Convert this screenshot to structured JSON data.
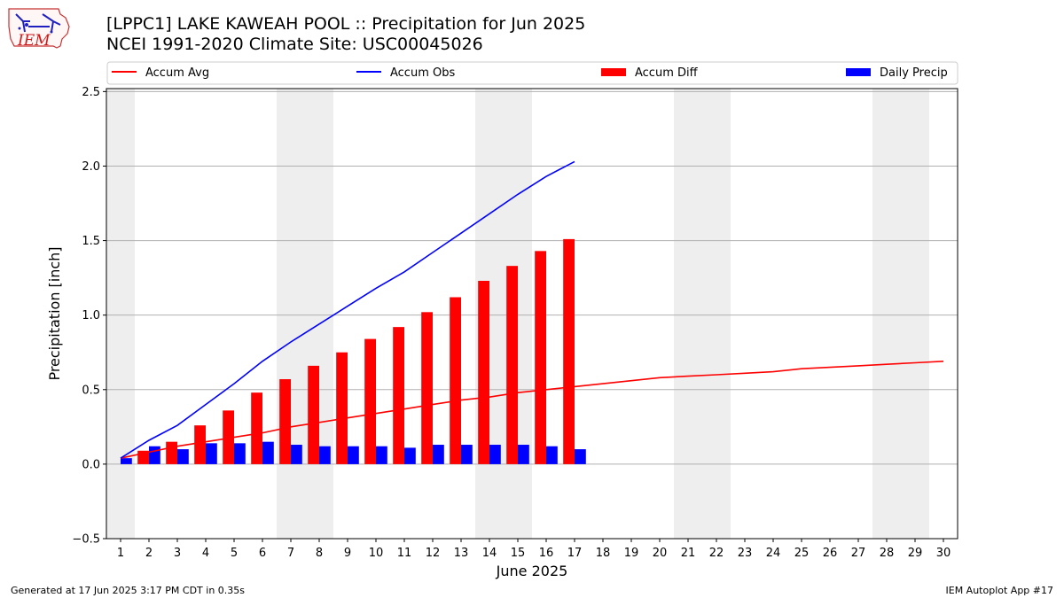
{
  "header": {
    "title_line1": "[LPPC1] LAKE KAWEAH POOL :: Precipitation for Jun 2025",
    "title_line2": "NCEI 1991-2020 Climate Site: USC00045026",
    "logo_text": "IEM"
  },
  "footer": {
    "generated": "Generated at 17 Jun 2025 3:17 PM CDT in 0.35s",
    "app": "IEM Autoplot App #17"
  },
  "colors": {
    "avg": "#ff0000",
    "obs": "#0000ff",
    "diff": "#ff0000",
    "daily": "#0000ff",
    "weekend_shade": "#eeeeee",
    "grid": "#b0b0b0"
  },
  "chart_data": {
    "type": "bar",
    "xlabel": "June 2025",
    "ylabel": "Precipitation [inch]",
    "xlim": [
      0.5,
      30.5
    ],
    "ylim": [
      -0.5,
      2.52
    ],
    "x_ticks": [
      1,
      2,
      3,
      4,
      5,
      6,
      7,
      8,
      9,
      10,
      11,
      12,
      13,
      14,
      15,
      16,
      17,
      18,
      19,
      20,
      21,
      22,
      23,
      24,
      25,
      26,
      27,
      28,
      29,
      30
    ],
    "y_ticks": [
      -0.5,
      0.0,
      0.5,
      1.0,
      1.5,
      2.0,
      2.5
    ],
    "y_tick_labels": [
      "−0.5",
      "0.0",
      "0.5",
      "1.0",
      "1.5",
      "2.0",
      "2.5"
    ],
    "grid": "horizontal",
    "legend_placement": "top",
    "weekend_shaded_days": [
      [
        1,
        1
      ],
      [
        7,
        8
      ],
      [
        14,
        15
      ],
      [
        21,
        22
      ],
      [
        28,
        29
      ]
    ],
    "series": [
      {
        "name": "Accum Avg",
        "kind": "line",
        "x": [
          1,
          2,
          3,
          4,
          5,
          6,
          7,
          8,
          9,
          10,
          11,
          12,
          13,
          14,
          15,
          16,
          17,
          18,
          19,
          20,
          21,
          22,
          23,
          24,
          25,
          26,
          27,
          28,
          29,
          30
        ],
        "values": [
          0.04,
          0.08,
          0.12,
          0.15,
          0.18,
          0.21,
          0.25,
          0.28,
          0.31,
          0.34,
          0.37,
          0.4,
          0.43,
          0.45,
          0.48,
          0.5,
          0.52,
          0.54,
          0.56,
          0.58,
          0.59,
          0.6,
          0.61,
          0.62,
          0.64,
          0.65,
          0.66,
          0.67,
          0.68,
          0.69
        ]
      },
      {
        "name": "Accum Obs",
        "kind": "line",
        "x": [
          1,
          2,
          3,
          4,
          5,
          6,
          7,
          8,
          9,
          10,
          11,
          12,
          13,
          14,
          15,
          16,
          17
        ],
        "values": [
          0.04,
          0.16,
          0.26,
          0.4,
          0.54,
          0.69,
          0.82,
          0.94,
          1.06,
          1.18,
          1.29,
          1.42,
          1.55,
          1.68,
          1.81,
          1.93,
          2.03
        ]
      },
      {
        "name": "Accum Diff",
        "kind": "bar",
        "x": [
          1,
          2,
          3,
          4,
          5,
          6,
          7,
          8,
          9,
          10,
          11,
          12,
          13,
          14,
          15,
          16,
          17
        ],
        "values": [
          0.0,
          0.09,
          0.15,
          0.26,
          0.36,
          0.48,
          0.57,
          0.66,
          0.75,
          0.84,
          0.92,
          1.02,
          1.12,
          1.23,
          1.33,
          1.43,
          1.51
        ]
      },
      {
        "name": "Daily Precip",
        "kind": "bar",
        "x": [
          1,
          2,
          3,
          4,
          5,
          6,
          7,
          8,
          9,
          10,
          11,
          12,
          13,
          14,
          15,
          16,
          17
        ],
        "values": [
          0.04,
          0.12,
          0.1,
          0.14,
          0.14,
          0.15,
          0.13,
          0.12,
          0.12,
          0.12,
          0.11,
          0.13,
          0.13,
          0.13,
          0.13,
          0.12,
          0.1
        ]
      }
    ]
  }
}
